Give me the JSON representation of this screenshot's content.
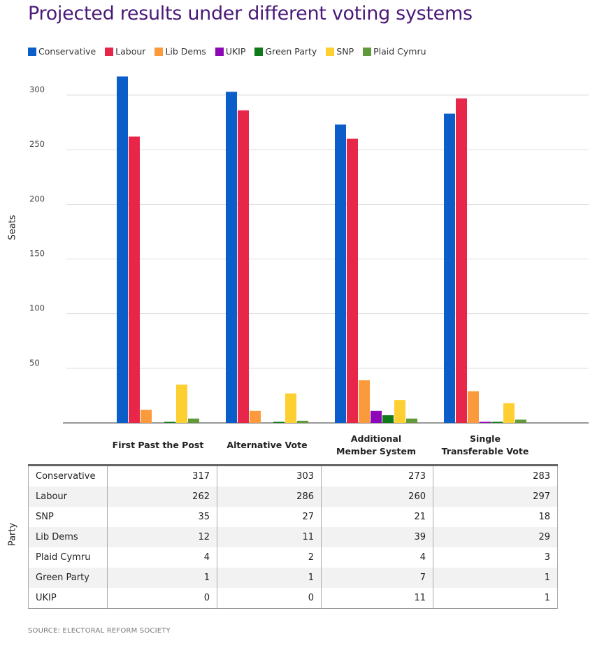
{
  "chart_data": {
    "type": "bar",
    "title": "Projected results under different voting systems",
    "ylabel": "Seats",
    "ylim": [
      0,
      300
    ],
    "yticks": [
      50,
      100,
      150,
      200,
      250,
      300
    ],
    "grid": true,
    "legend": "top-left",
    "categories": [
      "First Past the Post",
      "Alternative Vote",
      "Additional Member System",
      "Single Transferable Vote"
    ],
    "category_lines": [
      [
        "First Past the Post"
      ],
      [
        "Alternative Vote"
      ],
      [
        "Additional",
        "Member System"
      ],
      [
        "Single",
        "Transferable Vote"
      ]
    ],
    "series": [
      {
        "name": "Conservative",
        "color": "#0b5ec9",
        "values": [
          317,
          303,
          273,
          283
        ]
      },
      {
        "name": "Labour",
        "color": "#e8264a",
        "values": [
          262,
          286,
          260,
          297
        ]
      },
      {
        "name": "Lib Dems",
        "color": "#fa9a3c",
        "values": [
          12,
          11,
          39,
          29
        ]
      },
      {
        "name": "UKIP",
        "color": "#8c07b5",
        "values": [
          0,
          0,
          11,
          1
        ]
      },
      {
        "name": "Green Party",
        "color": "#107a1b",
        "values": [
          1,
          1,
          7,
          1
        ]
      },
      {
        "name": "SNP",
        "color": "#fdcf31",
        "values": [
          35,
          27,
          21,
          18
        ]
      },
      {
        "name": "Plaid Cymru",
        "color": "#62993a",
        "values": [
          4,
          2,
          4,
          3
        ]
      }
    ]
  },
  "table": {
    "axis_label": "Party",
    "rows": [
      {
        "party": "Conservative",
        "values": [
          317,
          303,
          273,
          283
        ]
      },
      {
        "party": "Labour",
        "values": [
          262,
          286,
          260,
          297
        ]
      },
      {
        "party": "SNP",
        "values": [
          35,
          27,
          21,
          18
        ]
      },
      {
        "party": "Lib Dems",
        "values": [
          12,
          11,
          39,
          29
        ]
      },
      {
        "party": "Plaid Cymru",
        "values": [
          4,
          2,
          4,
          3
        ]
      },
      {
        "party": "Green Party",
        "values": [
          1,
          1,
          7,
          1
        ]
      },
      {
        "party": "UKIP",
        "values": [
          0,
          0,
          11,
          1
        ]
      }
    ]
  },
  "source": "SOURCE: ELECTORAL REFORM SOCIETY"
}
